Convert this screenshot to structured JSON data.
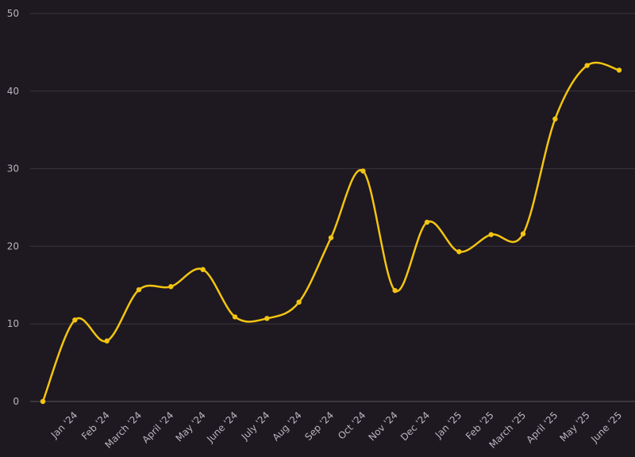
{
  "chart_data": {
    "type": "line",
    "title": "",
    "xlabel": "",
    "ylabel": "",
    "ylim": [
      0,
      50
    ],
    "yticks": [
      0,
      10,
      20,
      30,
      40,
      50
    ],
    "grid": true,
    "colors": {
      "background": "#1e1820",
      "line": "#f2c511",
      "grid": "#3a343d",
      "tick": "#b9b4bd"
    },
    "categories": [
      "",
      "Jan '24",
      "Feb '24",
      "March '24",
      "April '24",
      "May '24",
      "June '24",
      "July '24",
      "Aug '24",
      "Sep '24",
      "Oct '24",
      "Nov '24",
      "Dec '24",
      "Jan '25",
      "Feb '25",
      "March '25",
      "April '25",
      "May '25",
      "June '25"
    ],
    "series": [
      {
        "values": [
          0,
          10.5,
          7.8,
          14.4,
          14.8,
          17.0,
          10.9,
          10.7,
          12.8,
          21.1,
          29.7,
          14.3,
          23.1,
          19.3,
          21.5,
          21.6,
          36.4,
          43.3,
          42.7
        ]
      }
    ]
  }
}
